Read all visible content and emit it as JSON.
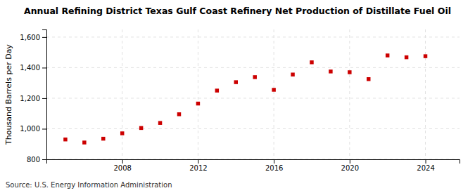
{
  "chart_data": {
    "type": "scatter",
    "title": "Annual Refining District Texas Gulf Coast Refinery Net Production of Distillate Fuel Oil",
    "ylabel": "Thousand Barrels per Day",
    "source": "Source: U.S. Energy Information Administration",
    "color": "#cc0000",
    "marker": "square",
    "x": [
      2005,
      2006,
      2007,
      2008,
      2009,
      2010,
      2011,
      2012,
      2013,
      2014,
      2015,
      2016,
      2017,
      2018,
      2019,
      2020,
      2021,
      2022,
      2023,
      2024
    ],
    "values": [
      930,
      910,
      935,
      970,
      1005,
      1038,
      1095,
      1165,
      1250,
      1305,
      1338,
      1255,
      1355,
      1435,
      1375,
      1370,
      1325,
      1480,
      1468,
      1475
    ],
    "xlim": [
      2004.0,
      2025.8
    ],
    "xticks": [
      2008,
      2012,
      2016,
      2020,
      2024
    ],
    "ylim": [
      800,
      1650
    ],
    "yticks": [
      800,
      {
        "value": 1000,
        "label": "1,000"
      },
      {
        "value": 1200,
        "label": "1,200"
      },
      {
        "value": 1400,
        "label": "1,400"
      },
      {
        "value": 1600,
        "label": "1,600"
      }
    ],
    "grid": true
  }
}
